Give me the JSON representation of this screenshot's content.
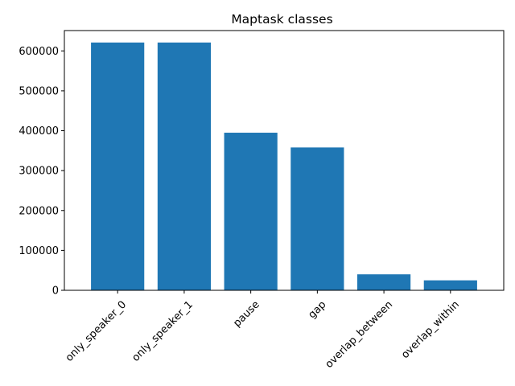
{
  "chart_data": {
    "type": "bar",
    "title": "Maptask classes",
    "xlabel": "",
    "ylabel": "",
    "categories": [
      "only_speaker_0",
      "only_speaker_1",
      "pause",
      "gap",
      "overlap_between",
      "overlap_within"
    ],
    "values": [
      621000,
      621000,
      395000,
      358000,
      40000,
      25000
    ],
    "ylim": [
      0,
      651000
    ],
    "yticks": [
      0,
      100000,
      200000,
      300000,
      400000,
      500000,
      600000
    ],
    "ytick_labels": [
      "0",
      "100000",
      "200000",
      "300000",
      "400000",
      "500000",
      "600000"
    ],
    "bar_color": "#1f77b4",
    "grid": false,
    "legend": "none",
    "xtick_rotation": 45
  }
}
